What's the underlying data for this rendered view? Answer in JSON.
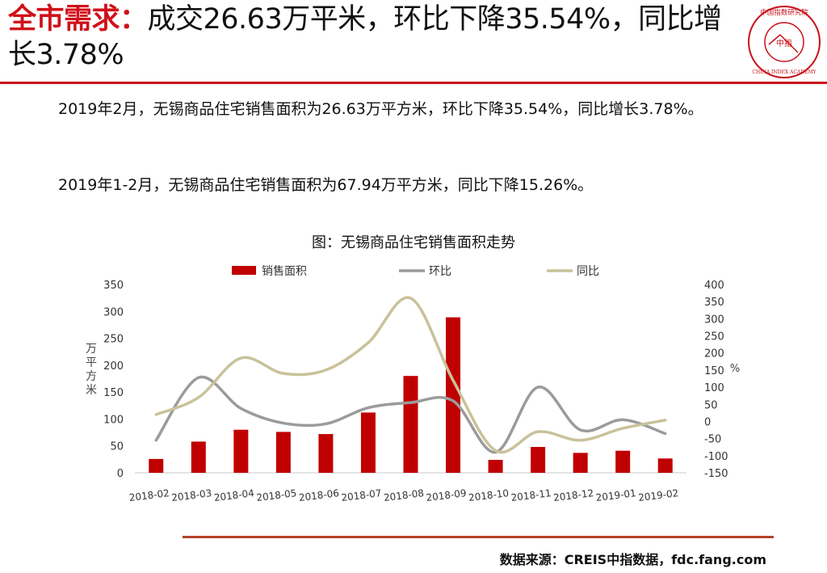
{
  "header": {
    "title_highlight": "全市需求：",
    "title_rest": "成交26.63万平米，环比下降35.54%，同比增长3.78%",
    "logo_text": "中国指数研究院",
    "logo_center": "中指",
    "logo_sub": "CHINA INDEX ACADEMY"
  },
  "body": {
    "para1": "2019年2月，无锡商品住宅销售面积为26.63万平方米，环比下降35.54%，同比增长3.78%。",
    "para2": "2019年1-2月，无锡商品住宅销售面积为67.94万平方米，同比下降15.26%。"
  },
  "chart_data": {
    "type": "bar",
    "title": "图：无锡商品住宅销售面积走势",
    "categories": [
      "2018-02",
      "2018-03",
      "2018-04",
      "2018-05",
      "2018-06",
      "2018-07",
      "2018-08",
      "2018-09",
      "2018-10",
      "2018-11",
      "2018-12",
      "2019-01",
      "2019-02"
    ],
    "series": [
      {
        "name": "销售面积",
        "type": "bar",
        "axis": "left",
        "color": "#c00000",
        "values": [
          25.7,
          58,
          80,
          76,
          72,
          112,
          180,
          289,
          24,
          48,
          37,
          41,
          26.63
        ]
      },
      {
        "name": "环比",
        "type": "line",
        "axis": "right",
        "color": "#9b9b9b",
        "values": [
          -55,
          128,
          38,
          -5,
          -7,
          40,
          55,
          60,
          -90,
          100,
          -25,
          5,
          -35.54
        ]
      },
      {
        "name": "同比",
        "type": "line",
        "axis": "right",
        "color": "#c9c29a",
        "values": [
          20,
          70,
          185,
          140,
          150,
          230,
          360,
          120,
          -85,
          -30,
          -55,
          -20,
          3.78
        ]
      }
    ],
    "ylabel": "万平方米",
    "y2label": "%",
    "ylim": [
      0,
      350
    ],
    "y_ticks": [
      0,
      50,
      100,
      150,
      200,
      250,
      300,
      350
    ],
    "y2lim": [
      -150,
      400
    ],
    "y2_ticks": [
      -150,
      -100,
      -50,
      0,
      50,
      100,
      150,
      200,
      250,
      300,
      350,
      400
    ],
    "legend": "top-center",
    "grid": false
  },
  "footer": {
    "source": "数据来源：CREIS中指数据，fdc.fang.com"
  }
}
